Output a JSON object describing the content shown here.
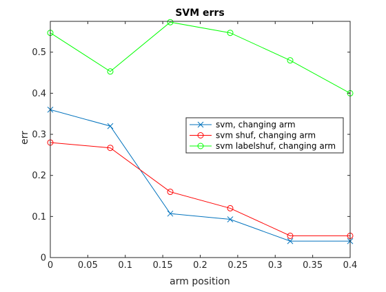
{
  "chart_data": {
    "type": "line",
    "title": "SVM errs",
    "xlabel": "arm position",
    "ylabel": "err",
    "xlim": [
      0,
      0.4
    ],
    "ylim": [
      0,
      0.575
    ],
    "x_ticks": [
      0,
      0.05,
      0.1,
      0.15,
      0.2,
      0.25,
      0.3,
      0.35,
      0.4
    ],
    "x_tick_labels": [
      "0",
      "0.05",
      "0.1",
      "0.15",
      "0.2",
      "0.25",
      "0.3",
      "0.35",
      "0.4"
    ],
    "y_ticks": [
      0,
      0.1,
      0.2,
      0.3,
      0.4,
      0.5
    ],
    "y_tick_labels": [
      "0",
      "0.1",
      "0.2",
      "0.3",
      "0.4",
      "0.5"
    ],
    "grid": false,
    "legend_position": "right-middle",
    "x": [
      0,
      0.08,
      0.16,
      0.24,
      0.32,
      0.4
    ],
    "series": [
      {
        "name": "svm, changing arm",
        "color": "#0072BD",
        "marker": "x",
        "values": [
          0.36,
          0.32,
          0.107,
          0.093,
          0.04,
          0.04
        ]
      },
      {
        "name": "svm shuf, changing arm",
        "color": "#FF0000",
        "marker": "o",
        "values": [
          0.28,
          0.267,
          0.16,
          0.12,
          0.053,
          0.053
        ]
      },
      {
        "name": "svm labelshuf, changing arm",
        "color": "#00FF00",
        "marker": "o",
        "values": [
          0.547,
          0.453,
          0.573,
          0.547,
          0.48,
          0.4
        ]
      }
    ]
  }
}
